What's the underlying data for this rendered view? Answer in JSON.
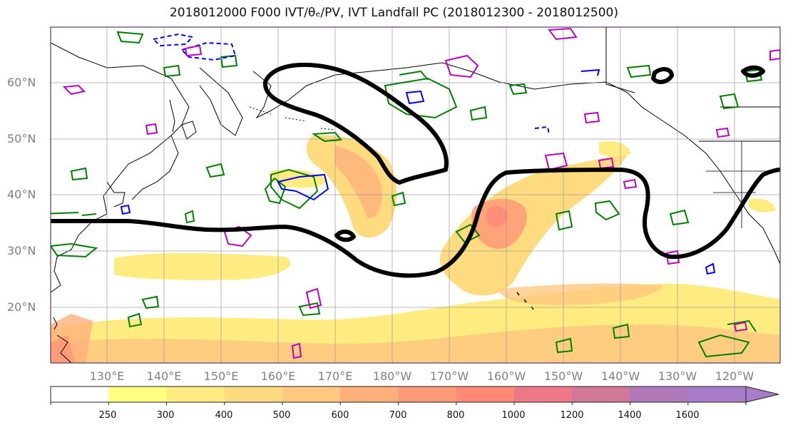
{
  "title": "2018012000 F000 IVT/θₑ/PV, IVT Landfall PC (2018012300 - 2018012500)",
  "lat_labels": [
    "60°N",
    "50°N",
    "40°N",
    "30°N",
    "20°N"
  ],
  "lon_labels": [
    "130°E",
    "140°E",
    "150°E",
    "160°E",
    "170°E",
    "180°W",
    "170°W",
    "160°W",
    "150°W",
    "140°W",
    "130°W",
    "120°W"
  ],
  "colorbar": {
    "ticks": [
      "250",
      "300",
      "400",
      "500",
      "600",
      "700",
      "800",
      "1000",
      "1200",
      "1400",
      "1600"
    ],
    "colors": [
      "#ffffff",
      "#ffff80",
      "#ffec80",
      "#ffdb80",
      "#ffc880",
      "#ffb07a",
      "#ff9a78",
      "#ff8878",
      "#ee7888",
      "#d27898",
      "#b078b8",
      "#a87cc8"
    ]
  },
  "contour_colors": {
    "landfall_pc": "#000000",
    "theta_e": "#008000",
    "pv_positive": "#0000ff",
    "pv_negative": "#c000c0"
  }
}
